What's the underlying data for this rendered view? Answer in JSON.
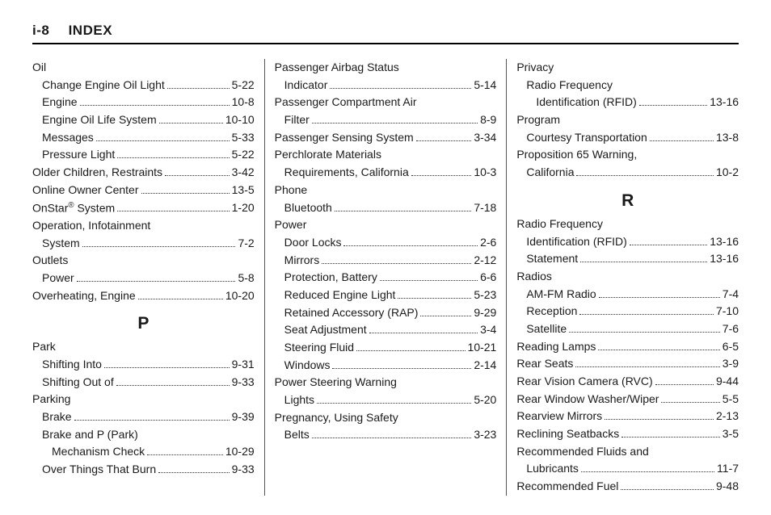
{
  "header": {
    "page_num": "i-8",
    "title": "INDEX"
  },
  "col1": {
    "entries": [
      {
        "label": "Oil",
        "page": "",
        "sub": 0,
        "noline": true
      },
      {
        "label": "Change Engine Oil Light",
        "page": "5-22",
        "sub": 1
      },
      {
        "label": "Engine",
        "page": "10-8",
        "sub": 1
      },
      {
        "label": "Engine Oil Life System",
        "page": "10-10",
        "sub": 1
      },
      {
        "label": "Messages",
        "page": "5-33",
        "sub": 1
      },
      {
        "label": "Pressure Light",
        "page": "5-22",
        "sub": 1
      },
      {
        "label": "Older Children, Restraints",
        "page": "3-42",
        "sub": 0
      },
      {
        "label": "Online Owner Center",
        "page": "13-5",
        "sub": 0
      },
      {
        "label": "OnStar® System",
        "page": "1-20",
        "sub": 0,
        "sup": true
      },
      {
        "label": "Operation, Infotainment",
        "page": "",
        "sub": 0,
        "noline": true
      },
      {
        "label": "System",
        "page": "7-2",
        "sub": 1
      },
      {
        "label": "Outlets",
        "page": "",
        "sub": 0,
        "noline": true
      },
      {
        "label": "Power",
        "page": "5-8",
        "sub": 1
      },
      {
        "label": "Overheating, Engine",
        "page": "10-20",
        "sub": 0
      }
    ],
    "letter": "P",
    "entries2": [
      {
        "label": "Park",
        "page": "",
        "sub": 0,
        "noline": true
      },
      {
        "label": "Shifting Into",
        "page": "9-31",
        "sub": 1
      },
      {
        "label": "Shifting Out of",
        "page": "9-33",
        "sub": 1
      },
      {
        "label": "Parking",
        "page": "",
        "sub": 0,
        "noline": true
      },
      {
        "label": "Brake",
        "page": "9-39",
        "sub": 1
      },
      {
        "label": "Brake and P (Park)",
        "page": "",
        "sub": 1,
        "noline": true
      },
      {
        "label": "Mechanism Check",
        "page": "10-29",
        "sub": 2
      },
      {
        "label": "Over Things That Burn",
        "page": "9-33",
        "sub": 1
      }
    ]
  },
  "col2": {
    "entries": [
      {
        "label": "Passenger Airbag Status",
        "page": "",
        "sub": 0,
        "noline": true
      },
      {
        "label": "Indicator",
        "page": "5-14",
        "sub": 1
      },
      {
        "label": "Passenger Compartment Air",
        "page": "",
        "sub": 0,
        "noline": true
      },
      {
        "label": "Filter",
        "page": "8-9",
        "sub": 1
      },
      {
        "label": "Passenger Sensing System",
        "page": "3-34",
        "sub": 0
      },
      {
        "label": "Perchlorate Materials",
        "page": "",
        "sub": 0,
        "noline": true
      },
      {
        "label": "Requirements, California",
        "page": "10-3",
        "sub": 1
      },
      {
        "label": "Phone",
        "page": "",
        "sub": 0,
        "noline": true
      },
      {
        "label": "Bluetooth",
        "page": "7-18",
        "sub": 1
      },
      {
        "label": "Power",
        "page": "",
        "sub": 0,
        "noline": true
      },
      {
        "label": "Door Locks",
        "page": "2-6",
        "sub": 1
      },
      {
        "label": "Mirrors",
        "page": "2-12",
        "sub": 1
      },
      {
        "label": "Protection, Battery",
        "page": "6-6",
        "sub": 1
      },
      {
        "label": "Reduced Engine Light",
        "page": "5-23",
        "sub": 1
      },
      {
        "label": "Retained Accessory (RAP)",
        "page": "9-29",
        "sub": 1
      },
      {
        "label": "Seat Adjustment",
        "page": "3-4",
        "sub": 1
      },
      {
        "label": "Steering Fluid",
        "page": "10-21",
        "sub": 1
      },
      {
        "label": "Windows",
        "page": "2-14",
        "sub": 1
      },
      {
        "label": "Power Steering Warning",
        "page": "",
        "sub": 0,
        "noline": true
      },
      {
        "label": "Lights",
        "page": "5-20",
        "sub": 1
      },
      {
        "label": "Pregnancy, Using Safety",
        "page": "",
        "sub": 0,
        "noline": true
      },
      {
        "label": "Belts",
        "page": "3-23",
        "sub": 1
      }
    ]
  },
  "col3": {
    "entries": [
      {
        "label": "Privacy",
        "page": "",
        "sub": 0,
        "noline": true
      },
      {
        "label": "Radio Frequency",
        "page": "",
        "sub": 1,
        "noline": true
      },
      {
        "label": "Identification (RFID)",
        "page": "13-16",
        "sub": 2
      },
      {
        "label": "Program",
        "page": "",
        "sub": 0,
        "noline": true
      },
      {
        "label": "Courtesy Transportation",
        "page": "13-8",
        "sub": 1
      },
      {
        "label": "Proposition 65 Warning,",
        "page": "",
        "sub": 0,
        "noline": true
      },
      {
        "label": "California",
        "page": "10-2",
        "sub": 1
      }
    ],
    "letter": "R",
    "entries2": [
      {
        "label": "Radio Frequency",
        "page": "",
        "sub": 0,
        "noline": true
      },
      {
        "label": "Identification (RFID)",
        "page": "13-16",
        "sub": 1
      },
      {
        "label": "Statement",
        "page": "13-16",
        "sub": 1
      },
      {
        "label": "Radios",
        "page": "",
        "sub": 0,
        "noline": true
      },
      {
        "label": "AM-FM Radio",
        "page": "7-4",
        "sub": 1
      },
      {
        "label": "Reception",
        "page": "7-10",
        "sub": 1
      },
      {
        "label": "Satellite",
        "page": "7-6",
        "sub": 1
      },
      {
        "label": "Reading Lamps",
        "page": "6-5",
        "sub": 0
      },
      {
        "label": "Rear Seats",
        "page": "3-9",
        "sub": 0
      },
      {
        "label": "Rear Vision Camera (RVC)",
        "page": "9-44",
        "sub": 0
      },
      {
        "label": "Rear Window Washer/Wiper",
        "page": "5-5",
        "sub": 0
      },
      {
        "label": "Rearview Mirrors",
        "page": "2-13",
        "sub": 0
      },
      {
        "label": "Reclining Seatbacks",
        "page": "3-5",
        "sub": 0
      },
      {
        "label": "Recommended Fluids and",
        "page": "",
        "sub": 0,
        "noline": true
      },
      {
        "label": "Lubricants",
        "page": "11-7",
        "sub": 1
      },
      {
        "label": "Recommended Fuel",
        "page": "9-48",
        "sub": 0
      }
    ]
  }
}
